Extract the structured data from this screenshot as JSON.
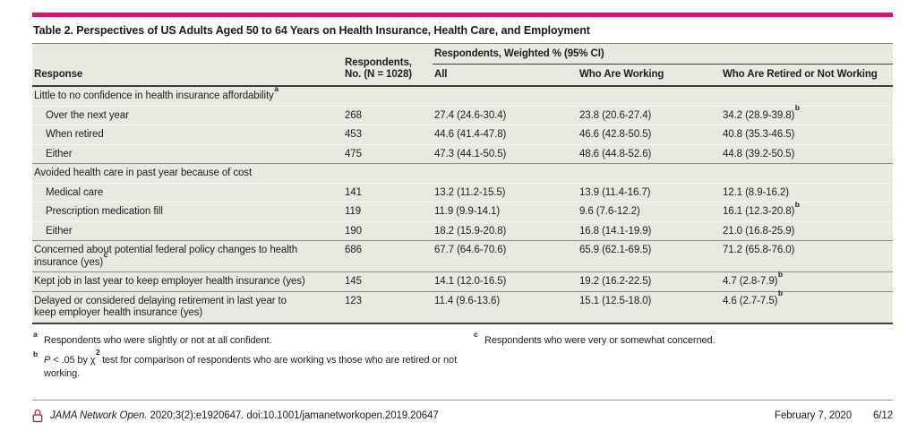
{
  "page": {
    "title": "Table 2. Perspectives of US Adults Aged 50 to 64 Years on Health Insurance, Health Care, and Employment"
  },
  "colors": {
    "accent": "#DB1470",
    "table_bg": "#EAE9E1",
    "lock": "#9C3A67"
  },
  "table": {
    "header": {
      "response": "Response",
      "respondents_no": "Respondents, No. (N = 1028)",
      "spanner": "Respondents, Weighted % (95% CI)",
      "col_all": "All",
      "col_working": "Who Are Working",
      "col_retired": "Who Are Retired or Not Working"
    },
    "rows": [
      {
        "type": "section",
        "label": "Little to no confidence in health insurance affordability",
        "label_sup": "a"
      },
      {
        "type": "data",
        "indent": true,
        "label": "Over the next year",
        "no": "268",
        "all": "27.4 (24.6-30.4)",
        "working": "23.8 (20.6-27.4)",
        "retired": "34.2 (28.9-39.8)",
        "retired_sup": "b"
      },
      {
        "type": "data",
        "indent": true,
        "label": "When retired",
        "no": "453",
        "all": "44.6 (41.4-47.8)",
        "working": "46.6 (42.8-50.5)",
        "retired": "40.8 (35.3-46.5)"
      },
      {
        "type": "data",
        "indent": true,
        "label": "Either",
        "no": "475",
        "all": "47.3 (44.1-50.5)",
        "working": "48.6 (44.8-52.6)",
        "retired": "44.8 (39.2-50.5)"
      },
      {
        "type": "section",
        "label": "Avoided health care in past year because of cost"
      },
      {
        "type": "data",
        "indent": true,
        "label": "Medical care",
        "no": "141",
        "all": "13.2 (11.2-15.5)",
        "working": "13.9 (11.4-16.7)",
        "retired": "12.1 (8.9-16.2)"
      },
      {
        "type": "data",
        "indent": true,
        "label": "Prescription medication fill",
        "no": "119",
        "all": "11.9 (9.9-14.1)",
        "working": "9.6 (7.6-12.2)",
        "retired": "16.1 (12.3-20.8)",
        "retired_sup": "b"
      },
      {
        "type": "data",
        "indent": true,
        "label": "Either",
        "no": "190",
        "all": "18.2 (15.9-20.8)",
        "working": "16.8 (14.1-19.9)",
        "retired": "21.0 (16.8-25.9)"
      },
      {
        "type": "data",
        "wrap_label": true,
        "label": "Concerned about potential federal policy changes to health insurance (yes)",
        "label_sup": "c",
        "no": "686",
        "all": "67.7 (64.6-70.6)",
        "working": "65.9 (62.1-69.5)",
        "retired": "71.2 (65.8-76.0)"
      },
      {
        "type": "data",
        "label": "Kept job in last year to keep employer health insurance (yes)",
        "no": "145",
        "all": "14.1 (12.0-16.5)",
        "working": "19.2 (16.2-22.5)",
        "retired": "4.7 (2.8-7.9)",
        "retired_sup": "b"
      },
      {
        "type": "data",
        "wrap_label": true,
        "label": "Delayed or considered delaying retirement in last year to keep employer health insurance (yes)",
        "no": "123",
        "all": "11.4 (9.6-13.6)",
        "working": "15.1 (12.5-18.0)",
        "retired": "4.6 (2.7-7.5)",
        "retired_sup": "b"
      }
    ]
  },
  "footnotes": {
    "a": {
      "marker": "a",
      "text": "Respondents who were slightly or not at all confident."
    },
    "b": {
      "marker": "b",
      "italic": "P",
      "mid": " < .05 by χ",
      "sup": "2",
      "rest": " test for comparison of respondents who are working vs those who are retired or not working."
    },
    "c": {
      "marker": "c",
      "text": "Respondents who were very or somewhat concerned."
    }
  },
  "footer": {
    "journal": "JAMA Network Open.",
    "citation": " 2020;3(2):e1920647. doi:10.1001/jamanetworkopen.2019.20647",
    "date": "February 7, 2020",
    "page": "6/12"
  }
}
